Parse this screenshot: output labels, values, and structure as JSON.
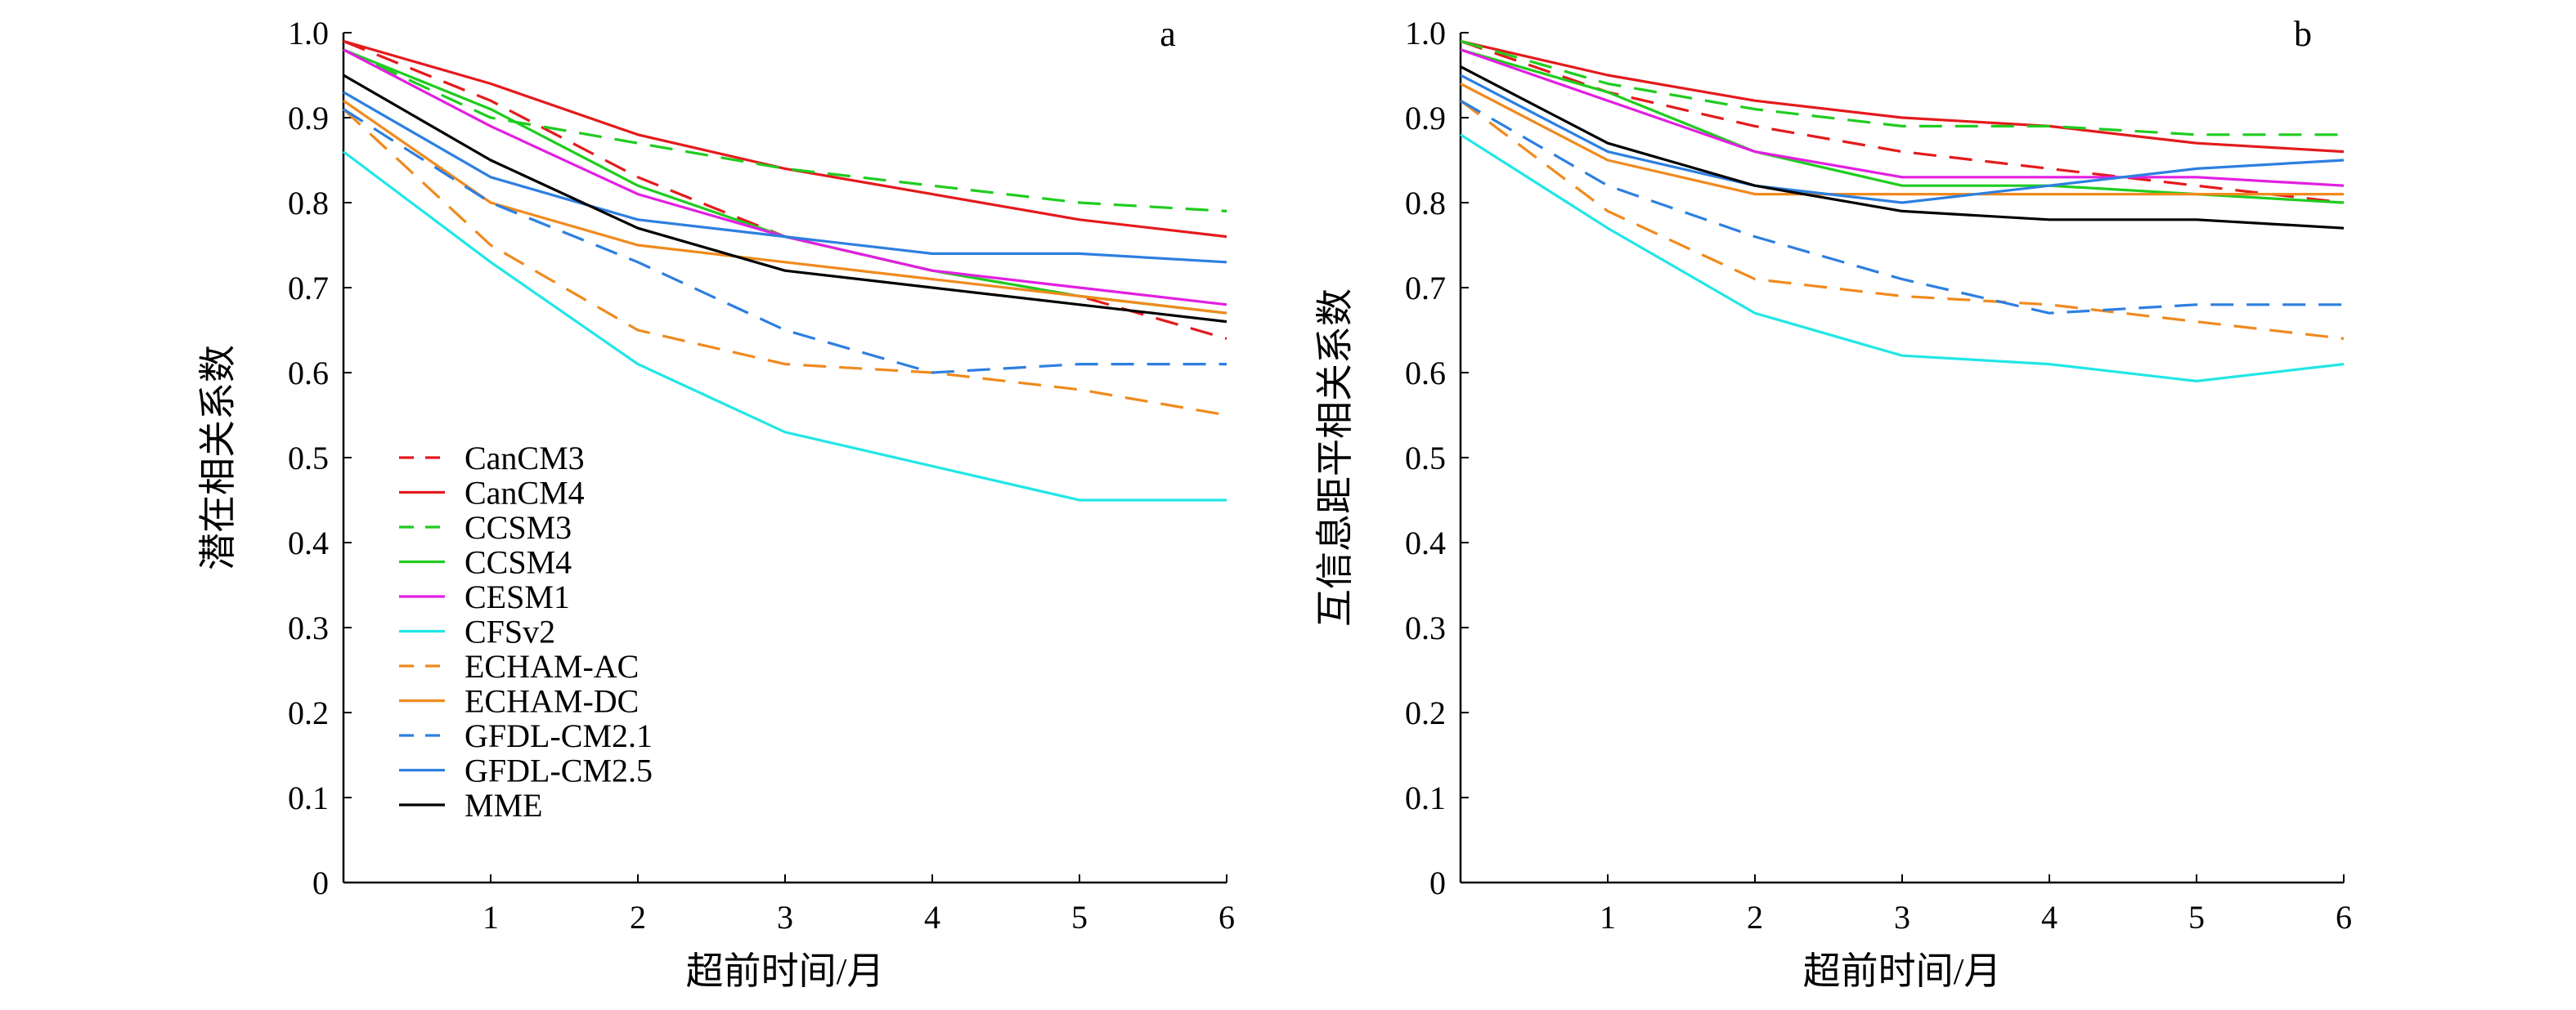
{
  "chart_data": [
    {
      "type": "line",
      "panel_label": "a",
      "xlabel": "超前时间/月",
      "ylabel": "潜在相关系数",
      "x": [
        0,
        1,
        2,
        3,
        4,
        5,
        6
      ],
      "xticks": [
        "1",
        "2",
        "3",
        "4",
        "5",
        "6"
      ],
      "xlim": [
        0,
        6
      ],
      "ylim": [
        0,
        1.0
      ],
      "yticks": [
        "0",
        "0.1",
        "0.2",
        "0.3",
        "0.4",
        "0.5",
        "0.6",
        "0.7",
        "0.8",
        "0.9",
        "1.0"
      ],
      "grid": false,
      "legend_position": "bottom-left",
      "series": [
        {
          "name": "CanCM3",
          "color": "#e41a1c",
          "dash": true,
          "values": [
            0.99,
            0.92,
            0.83,
            0.76,
            0.72,
            0.69,
            0.64
          ]
        },
        {
          "name": "CanCM4",
          "color": "#e41a1c",
          "dash": false,
          "values": [
            0.99,
            0.94,
            0.88,
            0.84,
            0.81,
            0.78,
            0.76
          ]
        },
        {
          "name": "CCSM3",
          "color": "#1fcc1f",
          "dash": true,
          "values": [
            0.98,
            0.9,
            0.87,
            0.84,
            0.82,
            0.8,
            0.79
          ]
        },
        {
          "name": "CCSM4",
          "color": "#1fcc1f",
          "dash": false,
          "values": [
            0.98,
            0.91,
            0.82,
            0.76,
            0.72,
            0.69,
            0.67
          ]
        },
        {
          "name": "CESM1",
          "color": "#e21fe2",
          "dash": false,
          "values": [
            0.98,
            0.89,
            0.81,
            0.76,
            0.72,
            0.7,
            0.68
          ]
        },
        {
          "name": "CFSv2",
          "color": "#22e6e6",
          "dash": false,
          "values": [
            0.86,
            0.73,
            0.61,
            0.53,
            0.49,
            0.45,
            0.45
          ]
        },
        {
          "name": "ECHAM-AC",
          "color": "#f08a1e",
          "dash": true,
          "values": [
            0.91,
            0.75,
            0.65,
            0.61,
            0.6,
            0.58,
            0.55
          ]
        },
        {
          "name": "ECHAM-DC",
          "color": "#f08a1e",
          "dash": false,
          "values": [
            0.92,
            0.8,
            0.75,
            0.73,
            0.71,
            0.69,
            0.67
          ]
        },
        {
          "name": "GFDL-CM2.1",
          "color": "#2d7fe0",
          "dash": true,
          "values": [
            0.91,
            0.8,
            0.73,
            0.65,
            0.6,
            0.61,
            0.61
          ]
        },
        {
          "name": "GFDL-CM2.5",
          "color": "#2d7fe0",
          "dash": false,
          "values": [
            0.93,
            0.83,
            0.78,
            0.76,
            0.74,
            0.74,
            0.73
          ]
        },
        {
          "name": "MME",
          "color": "#000000",
          "dash": false,
          "values": [
            0.95,
            0.85,
            0.77,
            0.72,
            0.7,
            0.68,
            0.66
          ]
        }
      ]
    },
    {
      "type": "line",
      "panel_label": "b",
      "xlabel": "超前时间/月",
      "ylabel": "互信息距平相关系数",
      "x": [
        0,
        1,
        2,
        3,
        4,
        5,
        6
      ],
      "xticks": [
        "1",
        "2",
        "3",
        "4",
        "5",
        "6"
      ],
      "xlim": [
        0,
        6
      ],
      "ylim": [
        0,
        1.0
      ],
      "yticks": [
        "0",
        "0.1",
        "0.2",
        "0.3",
        "0.4",
        "0.5",
        "0.6",
        "0.7",
        "0.8",
        "0.9",
        "1.0"
      ],
      "grid": false,
      "series": [
        {
          "name": "CanCM3",
          "color": "#e41a1c",
          "dash": true,
          "values": [
            0.99,
            0.93,
            0.89,
            0.86,
            0.84,
            0.82,
            0.8
          ]
        },
        {
          "name": "CanCM4",
          "color": "#e41a1c",
          "dash": false,
          "values": [
            0.99,
            0.95,
            0.92,
            0.9,
            0.89,
            0.87,
            0.86
          ]
        },
        {
          "name": "CCSM3",
          "color": "#1fcc1f",
          "dash": true,
          "values": [
            0.99,
            0.94,
            0.91,
            0.89,
            0.89,
            0.88,
            0.88
          ]
        },
        {
          "name": "CCSM4",
          "color": "#1fcc1f",
          "dash": false,
          "values": [
            0.98,
            0.93,
            0.86,
            0.82,
            0.82,
            0.81,
            0.8
          ]
        },
        {
          "name": "CESM1",
          "color": "#e21fe2",
          "dash": false,
          "values": [
            0.98,
            0.92,
            0.86,
            0.83,
            0.83,
            0.83,
            0.82
          ]
        },
        {
          "name": "CFSv2",
          "color": "#22e6e6",
          "dash": false,
          "values": [
            0.88,
            0.77,
            0.67,
            0.62,
            0.61,
            0.59,
            0.61
          ]
        },
        {
          "name": "ECHAM-AC",
          "color": "#f08a1e",
          "dash": true,
          "values": [
            0.92,
            0.79,
            0.71,
            0.69,
            0.68,
            0.66,
            0.64
          ]
        },
        {
          "name": "ECHAM-DC",
          "color": "#f08a1e",
          "dash": false,
          "values": [
            0.94,
            0.85,
            0.81,
            0.81,
            0.81,
            0.81,
            0.81
          ]
        },
        {
          "name": "GFDL-CM2.1",
          "color": "#2d7fe0",
          "dash": true,
          "values": [
            0.92,
            0.82,
            0.76,
            0.71,
            0.67,
            0.68,
            0.68
          ]
        },
        {
          "name": "GFDL-CM2.5",
          "color": "#2d7fe0",
          "dash": false,
          "values": [
            0.95,
            0.86,
            0.82,
            0.8,
            0.82,
            0.84,
            0.85
          ]
        },
        {
          "name": "MME",
          "color": "#000000",
          "dash": false,
          "values": [
            0.96,
            0.87,
            0.82,
            0.79,
            0.78,
            0.78,
            0.77
          ]
        }
      ]
    }
  ]
}
